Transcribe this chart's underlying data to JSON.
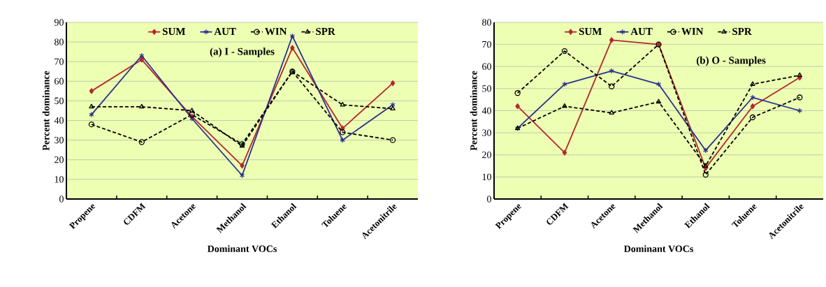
{
  "chart_data": [
    {
      "type": "line",
      "categories": [
        "Propene",
        "CDFM",
        "Acetone",
        "Methanol",
        "Ethanol",
        "Toluene",
        "Acetonitrile"
      ],
      "series": [
        {
          "name": "SUM",
          "color": "#b5272d",
          "marker": "diamond",
          "line_style": "solid",
          "values": [
            55,
            71,
            42,
            17,
            77,
            36,
            59
          ]
        },
        {
          "name": "AUT",
          "color": "#2b2f8f",
          "marker": "cross",
          "line_style": "solid",
          "values": [
            43,
            73,
            41,
            12,
            83,
            30,
            48
          ]
        },
        {
          "name": "WIN",
          "color": "#000000",
          "marker": "circle",
          "line_style": "dashed",
          "values": [
            38,
            29,
            43,
            28,
            65,
            34,
            30
          ]
        },
        {
          "name": "SPR",
          "color": "#000000",
          "marker": "triangle",
          "line_style": "dashed",
          "values": [
            47,
            47,
            45,
            27,
            65,
            48,
            46
          ]
        }
      ],
      "ylim": [
        0,
        90
      ],
      "yticks": [
        0,
        10,
        20,
        30,
        40,
        50,
        60,
        70,
        80,
        90
      ],
      "xlabel": "Dominant VOCs",
      "ylabel": "Percent dominance",
      "annotations": [
        "(a) I - Samples"
      ],
      "grid": "y",
      "legend": "top"
    },
    {
      "type": "line",
      "categories": [
        "Propene",
        "CDFM",
        "Acetone",
        "Methanol",
        "Ethanol",
        "Toluene",
        "Acetonitrile"
      ],
      "series": [
        {
          "name": "SUM",
          "color": "#b5272d",
          "marker": "diamond",
          "line_style": "solid",
          "values": [
            42,
            21,
            72,
            70,
            14,
            42,
            55
          ]
        },
        {
          "name": "AUT",
          "color": "#2b2f8f",
          "marker": "cross",
          "line_style": "solid",
          "values": [
            32,
            52,
            58,
            52,
            22,
            46,
            40
          ]
        },
        {
          "name": "WIN",
          "color": "#000000",
          "marker": "circle",
          "line_style": "dashed",
          "values": [
            48,
            67,
            51,
            70,
            11,
            37,
            46
          ]
        },
        {
          "name": "SPR",
          "color": "#000000",
          "marker": "triangle",
          "line_style": "dashed",
          "values": [
            32,
            42,
            39,
            44,
            15,
            52,
            56
          ]
        }
      ],
      "ylim": [
        0,
        80
      ],
      "yticks": [
        0,
        10,
        20,
        30,
        40,
        50,
        60,
        70,
        80
      ],
      "xlabel": "Dominant VOCs",
      "ylabel": "Percent dominance",
      "annotations": [
        "(b) O - Samples"
      ],
      "grid": "y",
      "legend": "top"
    }
  ]
}
